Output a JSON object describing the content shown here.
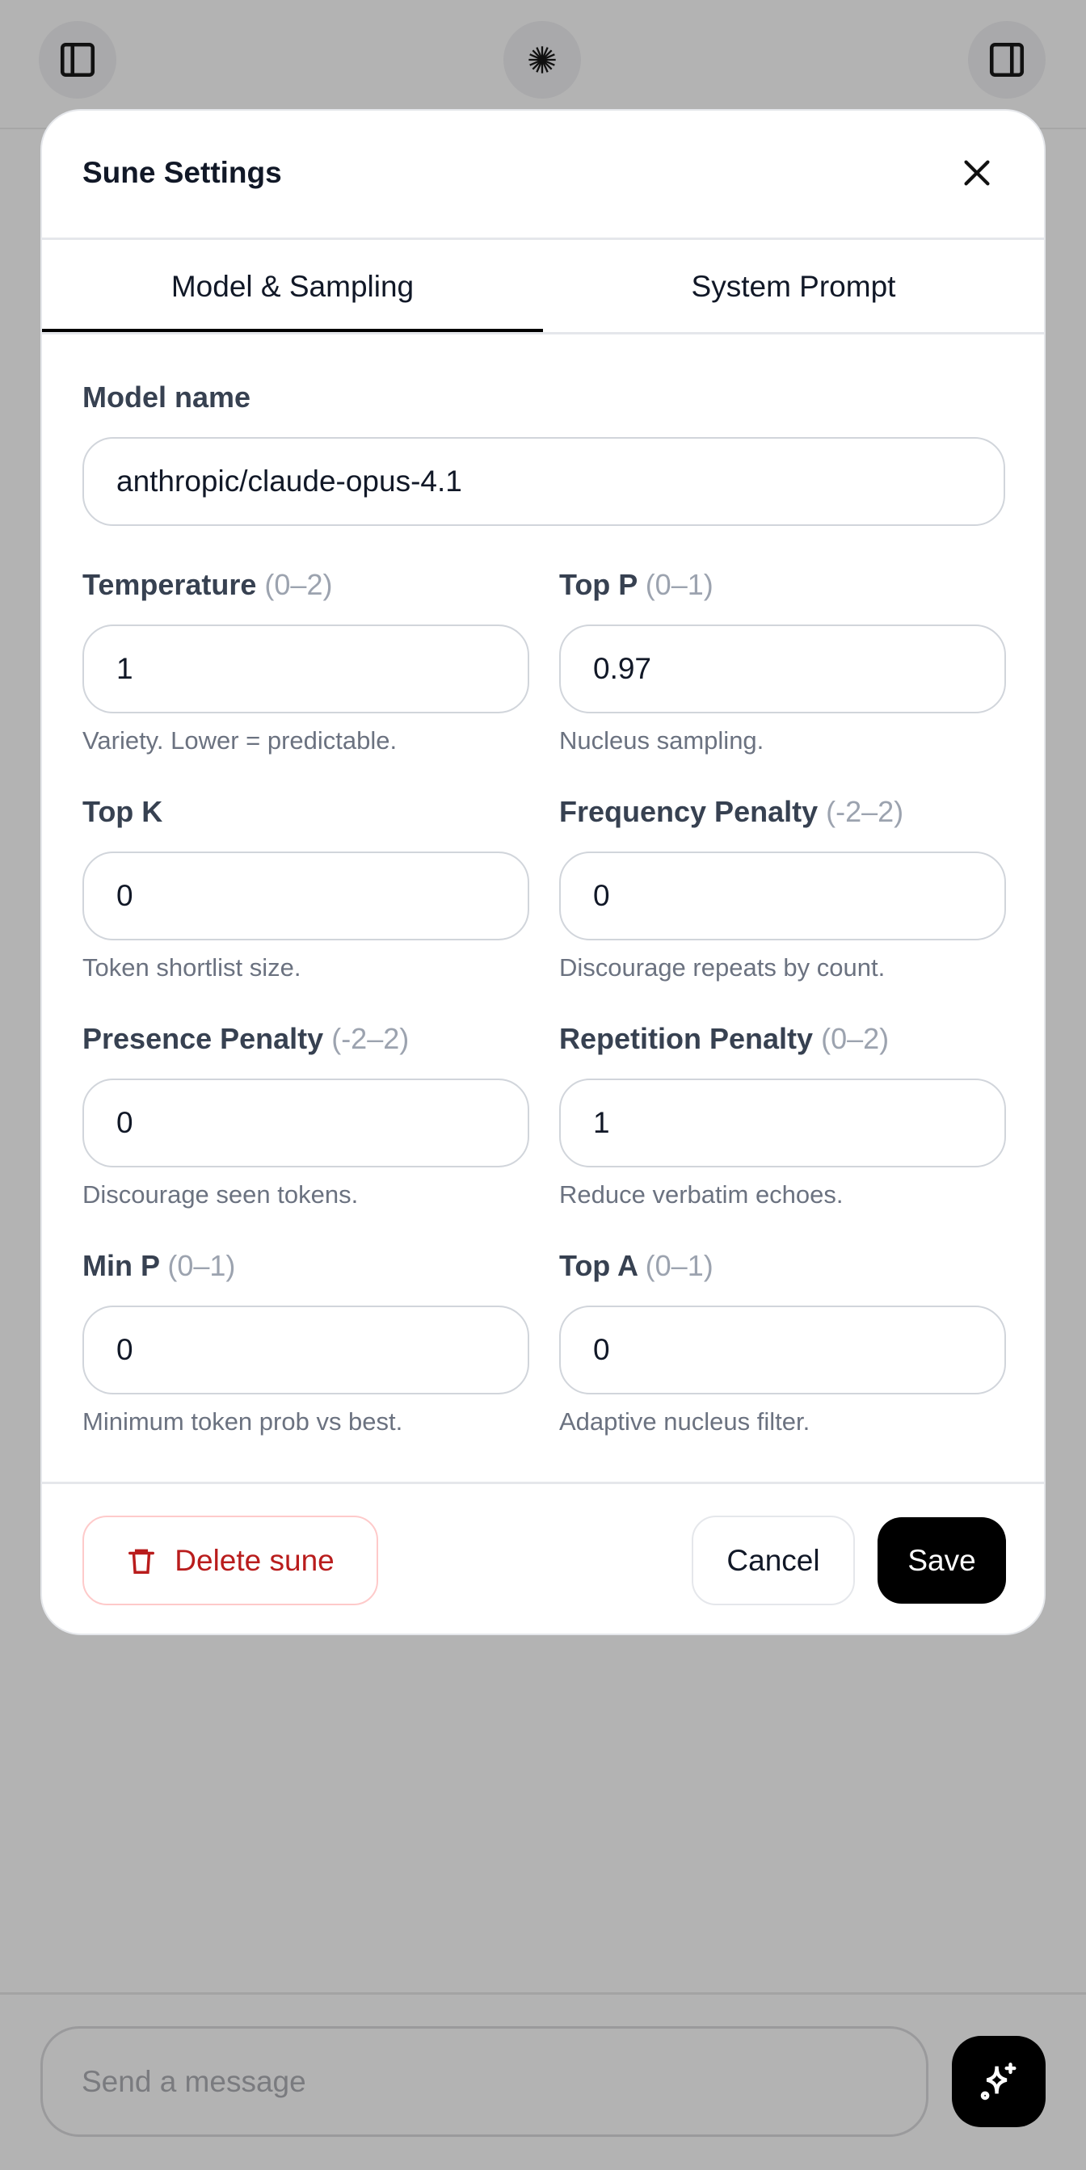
{
  "topbar": {
    "left_icon": "sidebar-left-icon",
    "center_icon": "starburst-icon",
    "right_icon": "sidebar-right-icon"
  },
  "modal": {
    "title": "Sune Settings",
    "tabs": [
      {
        "label": "Model & Sampling",
        "active": true
      },
      {
        "label": "System Prompt",
        "active": false
      }
    ],
    "model_name": {
      "label": "Model name",
      "value": "anthropic/claude-opus-4.1"
    },
    "fields": [
      {
        "label": "Temperature",
        "range": "(0–2)",
        "value": "1",
        "help": "Variety. Lower = predictable."
      },
      {
        "label": "Top P",
        "range": "(0–1)",
        "value": "0.97",
        "help": "Nucleus sampling."
      },
      {
        "label": "Top K",
        "range": "",
        "value": "0",
        "help": "Token shortlist size."
      },
      {
        "label": "Frequency Penalty",
        "range": "(-2–2)",
        "value": "0",
        "help": "Discourage repeats by count."
      },
      {
        "label": "Presence Penalty",
        "range": "(-2–2)",
        "value": "0",
        "help": "Discourage seen tokens."
      },
      {
        "label": "Repetition Penalty",
        "range": "(0–2)",
        "value": "1",
        "help": "Reduce verbatim echoes."
      },
      {
        "label": "Min P",
        "range": "(0–1)",
        "value": "0",
        "help": "Minimum token prob vs best."
      },
      {
        "label": "Top A",
        "range": "(0–1)",
        "value": "0",
        "help": "Adaptive nucleus filter."
      }
    ],
    "footer": {
      "delete_label": "Delete sune",
      "cancel_label": "Cancel",
      "save_label": "Save"
    }
  },
  "composer": {
    "placeholder": "Send a message",
    "send_icon": "sparkles-icon"
  },
  "colors": {
    "danger": "#b91c1c",
    "danger_border": "#fecaca",
    "primary": "#000000",
    "overlay": "#b3b3b3"
  }
}
